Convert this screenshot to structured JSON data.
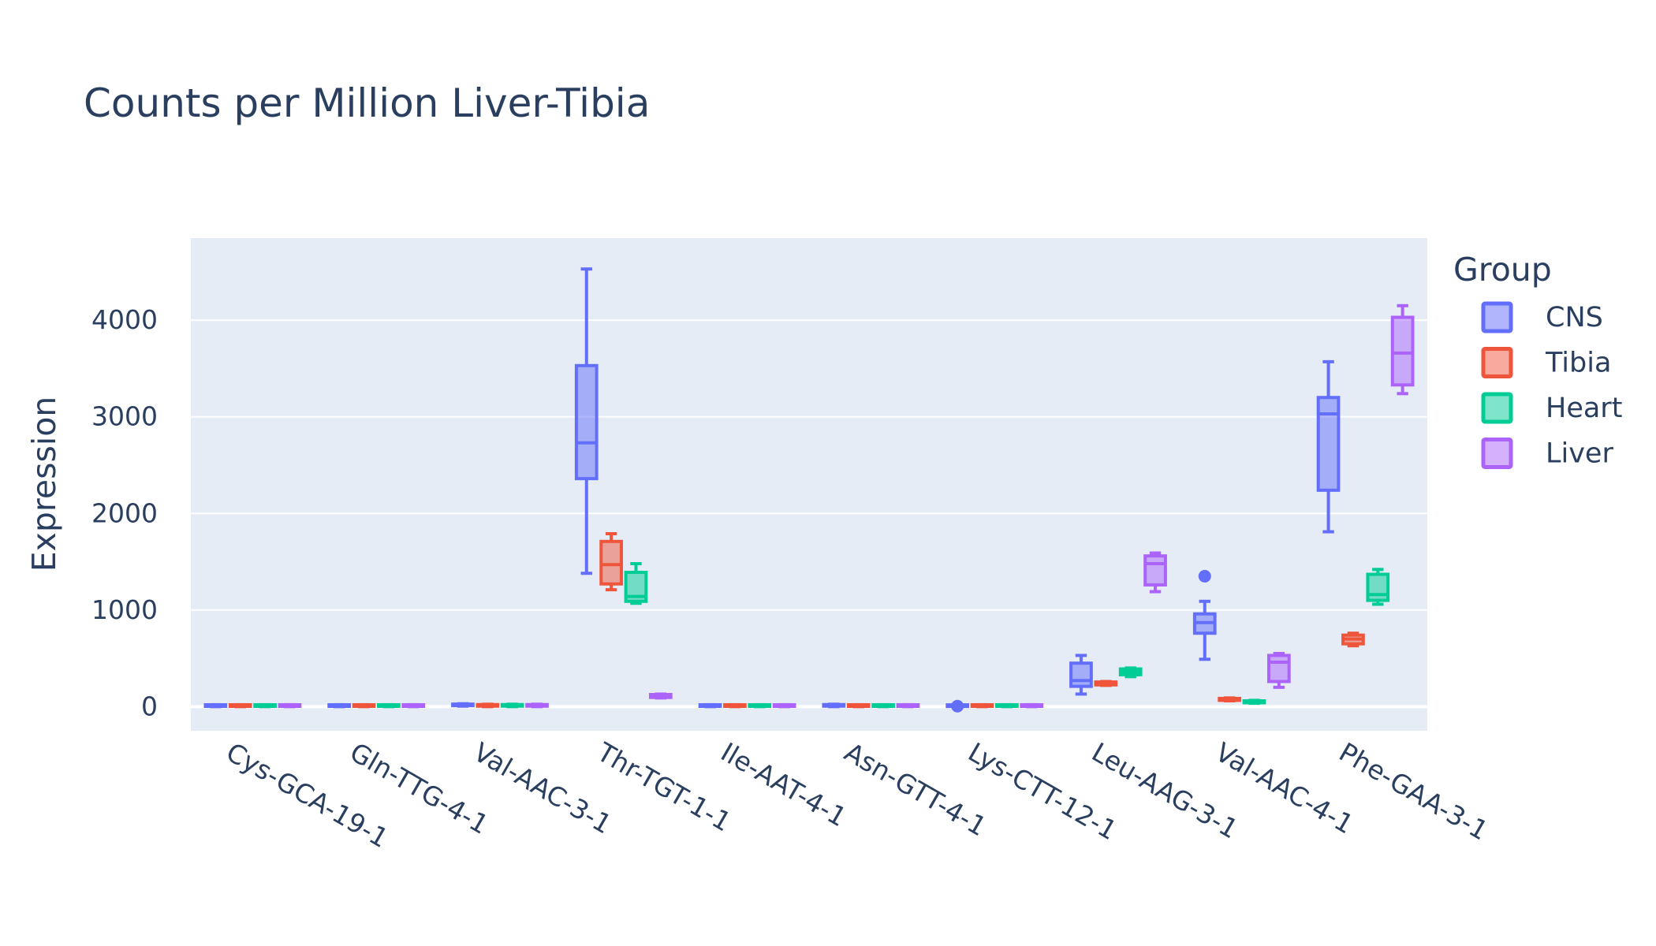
{
  "chart_data": {
    "type": "box",
    "title": "Counts per Million Liver-Tibia",
    "xlabel": "",
    "ylabel": "Expression",
    "ylim": [
      -250,
      4850
    ],
    "yticks": [
      0,
      1000,
      2000,
      3000,
      4000
    ],
    "grid": true,
    "legend": {
      "title": "Group",
      "placement": "right"
    },
    "categories": [
      "Cys-GCA-19-1",
      "Gln-TTG-4-1",
      "Val-AAC-3-1",
      "Thr-TGT-1-1",
      "Ile-AAT-4-1",
      "Asn-GTT-4-1",
      "Lys-CTT-12-1",
      "Leu-AAG-3-1",
      "Val-AAC-4-1",
      "Phe-GAA-3-1"
    ],
    "series": [
      {
        "name": "CNS",
        "color": "#636efa",
        "boxes": [
          {
            "min": 0,
            "q1": 3,
            "median": 8,
            "q3": 15,
            "max": 20,
            "outliers": []
          },
          {
            "min": 0,
            "q1": 3,
            "median": 8,
            "q3": 15,
            "max": 20,
            "outliers": []
          },
          {
            "min": 5,
            "q1": 10,
            "median": 15,
            "q3": 25,
            "max": 30,
            "outliers": []
          },
          {
            "min": 1380,
            "q1": 2360,
            "median": 2730,
            "q3": 3530,
            "max": 4530,
            "outliers": []
          },
          {
            "min": 0,
            "q1": 3,
            "median": 8,
            "q3": 15,
            "max": 20,
            "outliers": []
          },
          {
            "min": 0,
            "q1": 5,
            "median": 10,
            "q3": 18,
            "max": 25,
            "outliers": []
          },
          {
            "min": 0,
            "q1": 2,
            "median": 5,
            "q3": 10,
            "max": 15,
            "outliers": [
              5
            ]
          },
          {
            "min": 130,
            "q1": 210,
            "median": 270,
            "q3": 450,
            "max": 530,
            "outliers": []
          },
          {
            "min": 490,
            "q1": 760,
            "median": 870,
            "q3": 960,
            "max": 1090,
            "outliers": [
              1350
            ]
          },
          {
            "min": 1810,
            "q1": 2240,
            "median": 3030,
            "q3": 3200,
            "max": 3570,
            "outliers": []
          }
        ]
      },
      {
        "name": "Tibia",
        "color": "#ef553b",
        "boxes": [
          {
            "min": 0,
            "q1": 3,
            "median": 8,
            "q3": 15,
            "max": 20,
            "outliers": []
          },
          {
            "min": 0,
            "q1": 3,
            "median": 8,
            "q3": 15,
            "max": 20,
            "outliers": []
          },
          {
            "min": 0,
            "q1": 5,
            "median": 10,
            "q3": 18,
            "max": 25,
            "outliers": []
          },
          {
            "min": 1210,
            "q1": 1270,
            "median": 1470,
            "q3": 1710,
            "max": 1790,
            "outliers": []
          },
          {
            "min": 0,
            "q1": 3,
            "median": 8,
            "q3": 15,
            "max": 20,
            "outliers": []
          },
          {
            "min": 0,
            "q1": 3,
            "median": 8,
            "q3": 15,
            "max": 20,
            "outliers": []
          },
          {
            "min": 0,
            "q1": 3,
            "median": 8,
            "q3": 15,
            "max": 20,
            "outliers": []
          },
          {
            "min": 220,
            "q1": 225,
            "median": 240,
            "q3": 255,
            "max": 260,
            "outliers": []
          },
          {
            "min": 60,
            "q1": 65,
            "median": 75,
            "q3": 85,
            "max": 90,
            "outliers": []
          },
          {
            "min": 630,
            "q1": 650,
            "median": 700,
            "q3": 740,
            "max": 760,
            "outliers": []
          }
        ]
      },
      {
        "name": "Heart",
        "color": "#00cc96",
        "boxes": [
          {
            "min": 0,
            "q1": 3,
            "median": 8,
            "q3": 15,
            "max": 20,
            "outliers": []
          },
          {
            "min": 0,
            "q1": 3,
            "median": 8,
            "q3": 15,
            "max": 20,
            "outliers": []
          },
          {
            "min": 0,
            "q1": 5,
            "median": 10,
            "q3": 18,
            "max": 25,
            "outliers": []
          },
          {
            "min": 1070,
            "q1": 1090,
            "median": 1140,
            "q3": 1390,
            "max": 1480,
            "outliers": []
          },
          {
            "min": 0,
            "q1": 3,
            "median": 8,
            "q3": 15,
            "max": 20,
            "outliers": []
          },
          {
            "min": 0,
            "q1": 3,
            "median": 8,
            "q3": 15,
            "max": 20,
            "outliers": []
          },
          {
            "min": 0,
            "q1": 3,
            "median": 8,
            "q3": 15,
            "max": 20,
            "outliers": []
          },
          {
            "min": 310,
            "q1": 330,
            "median": 360,
            "q3": 390,
            "max": 400,
            "outliers": []
          },
          {
            "min": 35,
            "q1": 40,
            "median": 50,
            "q3": 60,
            "max": 65,
            "outliers": []
          },
          {
            "min": 1060,
            "q1": 1100,
            "median": 1160,
            "q3": 1370,
            "max": 1420,
            "outliers": []
          }
        ]
      },
      {
        "name": "Liver",
        "color": "#ab63fa",
        "boxes": [
          {
            "min": 0,
            "q1": 3,
            "median": 8,
            "q3": 15,
            "max": 20,
            "outliers": []
          },
          {
            "min": 0,
            "q1": 3,
            "median": 8,
            "q3": 15,
            "max": 20,
            "outliers": []
          },
          {
            "min": 0,
            "q1": 5,
            "median": 10,
            "q3": 18,
            "max": 25,
            "outliers": []
          },
          {
            "min": 90,
            "q1": 95,
            "median": 110,
            "q3": 125,
            "max": 130,
            "outliers": []
          },
          {
            "min": 0,
            "q1": 3,
            "median": 8,
            "q3": 15,
            "max": 20,
            "outliers": []
          },
          {
            "min": 0,
            "q1": 3,
            "median": 8,
            "q3": 15,
            "max": 20,
            "outliers": []
          },
          {
            "min": 0,
            "q1": 3,
            "median": 8,
            "q3": 15,
            "max": 20,
            "outliers": []
          },
          {
            "min": 1190,
            "q1": 1260,
            "median": 1480,
            "q3": 1560,
            "max": 1590,
            "outliers": []
          },
          {
            "min": 200,
            "q1": 260,
            "median": 460,
            "q3": 530,
            "max": 550,
            "outliers": []
          },
          {
            "min": 3240,
            "q1": 3330,
            "median": 3660,
            "q3": 4030,
            "max": 4150,
            "outliers": []
          }
        ]
      }
    ]
  }
}
